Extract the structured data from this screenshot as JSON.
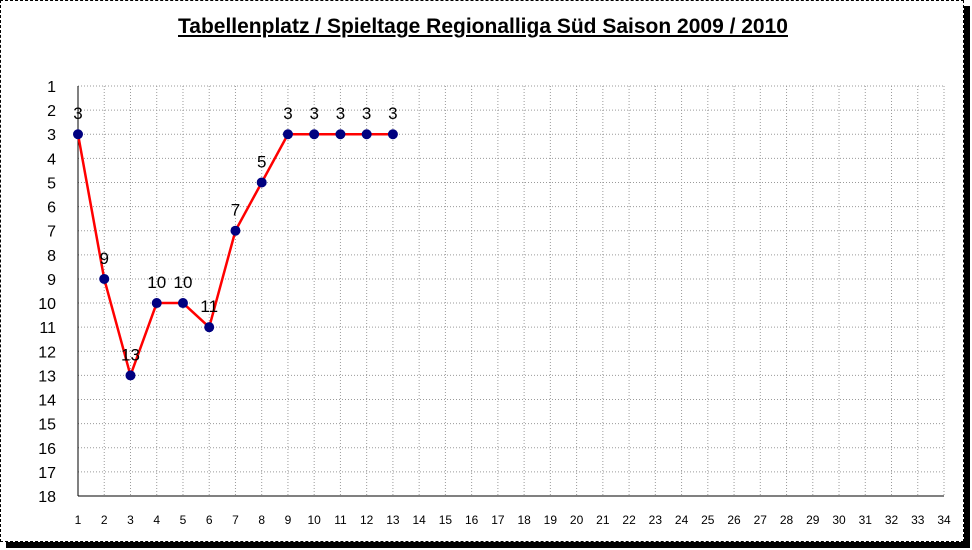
{
  "chart_data": {
    "type": "line",
    "title": "Tabellenplatz / Spieltage Regionalliga Süd Saison 2009 / 2010",
    "xlabel": "",
    "ylabel": "",
    "x_categories": [
      1,
      2,
      3,
      4,
      5,
      6,
      7,
      8,
      9,
      10,
      11,
      12,
      13,
      14,
      15,
      16,
      17,
      18,
      19,
      20,
      21,
      22,
      23,
      24,
      25,
      26,
      27,
      28,
      29,
      30,
      31,
      32,
      33,
      34
    ],
    "y_range": [
      1,
      18
    ],
    "y_inverted": true,
    "grid": true,
    "legend": "none",
    "series": [
      {
        "color": "#ff0000",
        "marker_color": "#000080",
        "x": [
          1,
          2,
          3,
          4,
          5,
          6,
          7,
          8,
          9,
          10,
          11,
          12,
          13
        ],
        "values": [
          3,
          9,
          13,
          10,
          10,
          11,
          7,
          5,
          3,
          3,
          3,
          3,
          3
        ]
      }
    ]
  }
}
